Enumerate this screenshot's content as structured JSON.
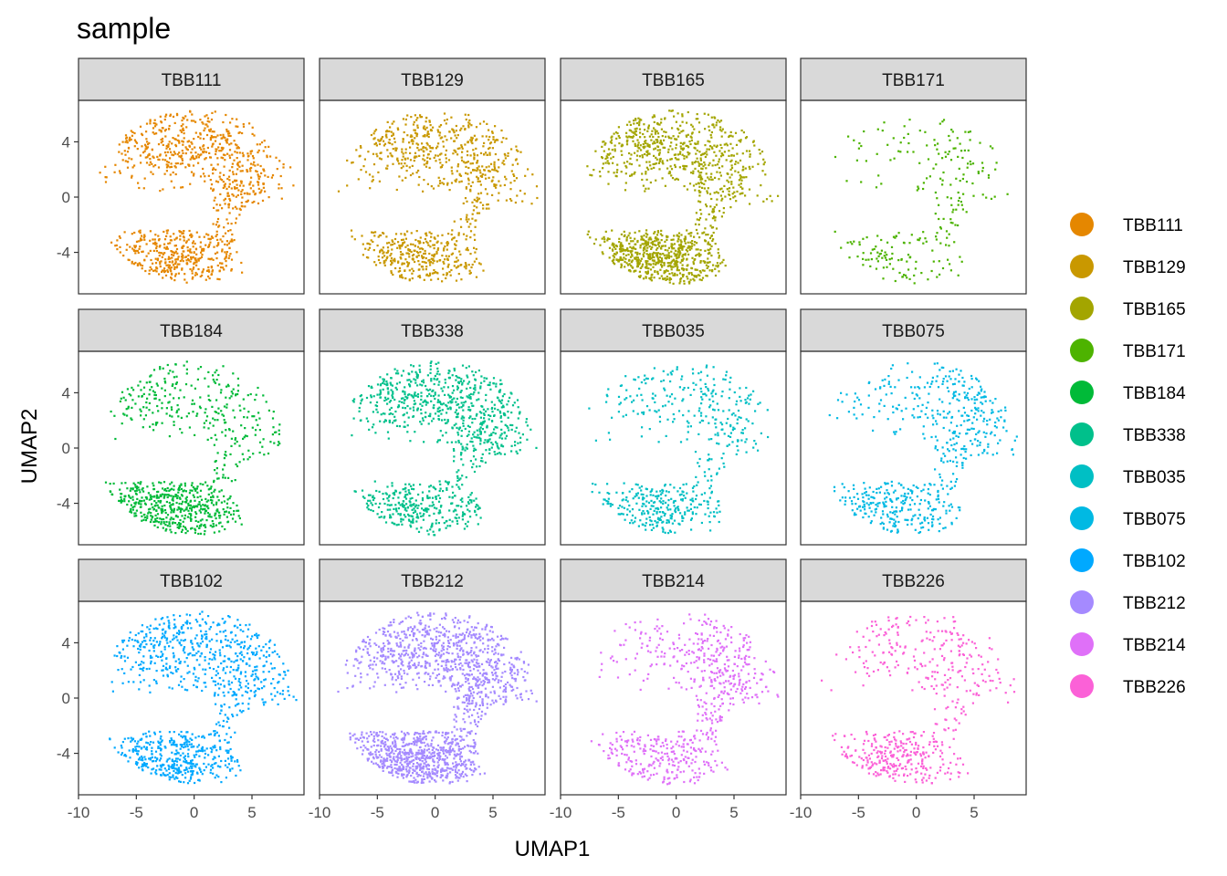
{
  "chart_data": {
    "type": "scatter",
    "title": "sample",
    "xlabel": "UMAP1",
    "ylabel": "UMAP2",
    "xlim": [
      -10,
      9.5
    ],
    "ylim": [
      -7,
      7
    ],
    "x_ticks": [
      -10,
      -5,
      0,
      5
    ],
    "y_ticks": [
      4,
      0,
      -4
    ],
    "x_tick_labels": [
      "-10",
      "-5",
      "0",
      "5"
    ],
    "y_tick_labels": [
      "4",
      "0",
      "-4"
    ],
    "legend_placement": "right",
    "facets": [
      {
        "name": "TBB111",
        "color": "#E58700",
        "density": 1.0,
        "bias": [
          1.0,
          1.0,
          1.0
        ]
      },
      {
        "name": "TBB129",
        "color": "#C99800",
        "density": 0.9,
        "bias": [
          1.0,
          1.0,
          1.0
        ]
      },
      {
        "name": "TBB165",
        "color": "#A3A500",
        "density": 1.3,
        "bias": [
          0.9,
          0.8,
          1.4
        ]
      },
      {
        "name": "TBB171",
        "color": "#4DB300",
        "density": 0.25,
        "bias": [
          0.5,
          1.2,
          1.0
        ]
      },
      {
        "name": "TBB184",
        "color": "#00BA38",
        "density": 0.8,
        "bias": [
          0.7,
          0.5,
          1.6
        ]
      },
      {
        "name": "TBB338",
        "color": "#00C08B",
        "density": 1.0,
        "bias": [
          1.0,
          1.1,
          0.8
        ]
      },
      {
        "name": "TBB035",
        "color": "#00BFC4",
        "density": 0.55,
        "bias": [
          0.6,
          1.0,
          1.3
        ]
      },
      {
        "name": "TBB075",
        "color": "#00B9E3",
        "density": 0.6,
        "bias": [
          0.4,
          1.5,
          1.0
        ]
      },
      {
        "name": "TBB102",
        "color": "#00A9FF",
        "density": 1.0,
        "bias": [
          1.0,
          1.0,
          1.0
        ]
      },
      {
        "name": "TBB212",
        "color": "#A58AFF",
        "density": 1.6,
        "bias": [
          1.0,
          1.2,
          1.2
        ]
      },
      {
        "name": "TBB214",
        "color": "#DF70F8",
        "density": 0.65,
        "bias": [
          0.5,
          1.5,
          1.0
        ]
      },
      {
        "name": "TBB226",
        "color": "#FB61D7",
        "density": 0.55,
        "bias": [
          0.7,
          1.0,
          1.4
        ]
      }
    ]
  }
}
